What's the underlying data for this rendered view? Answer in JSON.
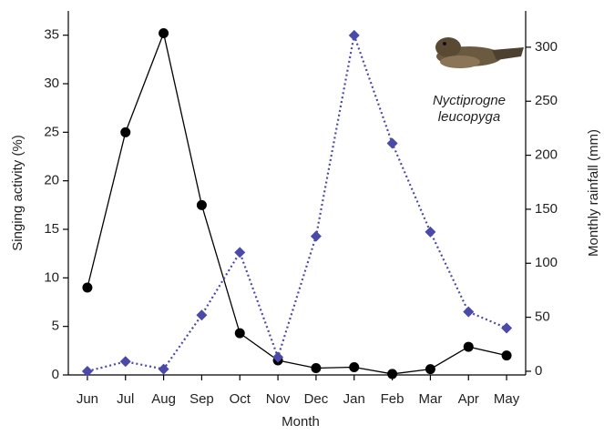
{
  "chart_data": {
    "type": "line",
    "x_label": "Month",
    "y_label": "Singing activity (%)",
    "y2_label": "Monthly rainfall (mm)",
    "annotation": [
      "Nyctiprogne",
      "leucopyga"
    ],
    "categories": [
      "Jun",
      "Jul",
      "Aug",
      "Sep",
      "Oct",
      "Nov",
      "Dec",
      "Jan",
      "Feb",
      "Mar",
      "Apr",
      "May"
    ],
    "series": [
      {
        "color": "#000000",
        "marker": "circle",
        "dash": "solid",
        "values": [
          9.0,
          25.0,
          35.2,
          17.5,
          4.3,
          1.5,
          0.7,
          0.8,
          0.1,
          0.6,
          2.9,
          2.0
        ]
      },
      {
        "color": "#4a4aa8",
        "marker": "diamond",
        "dash": "dotted",
        "axis": "y2",
        "values": [
          0,
          9,
          2,
          52,
          110,
          13,
          125,
          311,
          211,
          129,
          55,
          40
        ]
      }
    ],
    "ylim": [
      0,
      37.5
    ],
    "yticks": [
      0,
      5,
      10,
      15,
      20,
      25,
      30,
      35
    ],
    "y2lim": [
      -3.4,
      333.6
    ],
    "y2ticks": [
      0,
      50,
      100,
      150,
      200,
      250,
      300
    ]
  }
}
